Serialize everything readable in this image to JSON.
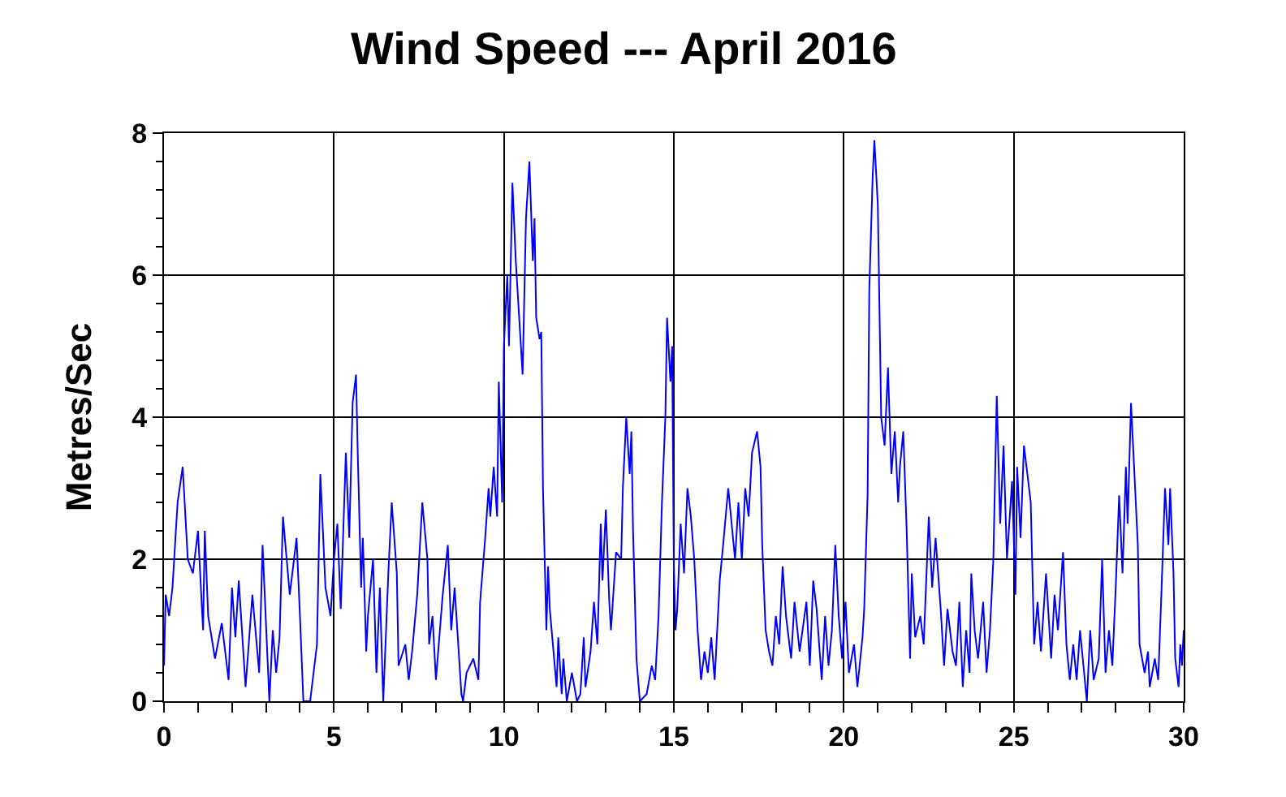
{
  "chart_data": {
    "type": "line",
    "title": "Wind Speed --- April 2016",
    "ylabel": "Metres/Sec",
    "x": [
      0,
      0.05,
      0.15,
      0.25,
      0.4,
      0.55,
      0.7,
      0.85,
      1.0,
      1.15,
      1.2,
      1.3,
      1.5,
      1.7,
      1.9,
      2.0,
      2.1,
      2.2,
      2.4,
      2.6,
      2.8,
      2.9,
      3.1,
      3.2,
      3.3,
      3.4,
      3.5,
      3.7,
      3.9,
      4.0,
      4.1,
      4.3,
      4.5,
      4.6,
      4.75,
      4.9,
      5.0,
      5.1,
      5.2,
      5.35,
      5.45,
      5.55,
      5.65,
      5.7,
      5.8,
      5.85,
      5.95,
      6.0,
      6.15,
      6.25,
      6.35,
      6.45,
      6.6,
      6.7,
      6.85,
      6.9,
      7.1,
      7.2,
      7.3,
      7.45,
      7.6,
      7.75,
      7.8,
      7.9,
      8.0,
      8.2,
      8.35,
      8.45,
      8.55,
      8.75,
      8.8,
      8.9,
      9.1,
      9.25,
      9.3,
      9.45,
      9.55,
      9.6,
      9.7,
      9.8,
      9.85,
      9.95,
      10.0,
      10.1,
      10.15,
      10.25,
      10.35,
      10.5,
      10.55,
      10.65,
      10.75,
      10.85,
      10.9,
      10.95,
      11.05,
      11.1,
      11.15,
      11.25,
      11.3,
      11.35,
      11.55,
      11.6,
      11.7,
      11.75,
      11.85,
      12.0,
      12.15,
      12.25,
      12.35,
      12.4,
      12.55,
      12.65,
      12.75,
      12.85,
      12.9,
      13.0,
      13.1,
      13.15,
      13.3,
      13.45,
      13.5,
      13.6,
      13.7,
      13.75,
      13.8,
      13.9,
      14.0,
      14.2,
      14.35,
      14.45,
      14.55,
      14.65,
      14.75,
      14.8,
      14.9,
      14.95,
      15.0,
      15.05,
      15.1,
      15.2,
      15.3,
      15.4,
      15.5,
      15.6,
      15.7,
      15.8,
      15.9,
      16.0,
      16.1,
      16.2,
      16.35,
      16.45,
      16.6,
      16.7,
      16.8,
      16.9,
      17.0,
      17.1,
      17.2,
      17.3,
      17.45,
      17.55,
      17.6,
      17.7,
      17.8,
      17.9,
      18.0,
      18.1,
      18.2,
      18.3,
      18.45,
      18.55,
      18.7,
      18.9,
      19.0,
      19.1,
      19.2,
      19.35,
      19.45,
      19.55,
      19.65,
      19.75,
      19.85,
      19.95,
      20.05,
      20.15,
      20.3,
      20.4,
      20.55,
      20.6,
      20.7,
      20.75,
      20.85,
      20.9,
      21.0,
      21.05,
      21.1,
      21.2,
      21.3,
      21.4,
      21.5,
      21.6,
      21.65,
      21.75,
      21.85,
      21.95,
      22.0,
      22.1,
      22.25,
      22.35,
      22.5,
      22.6,
      22.7,
      22.85,
      22.95,
      23.05,
      23.2,
      23.3,
      23.4,
      23.5,
      23.6,
      23.7,
      23.75,
      23.85,
      23.95,
      24.1,
      24.2,
      24.3,
      24.4,
      24.5,
      24.6,
      24.7,
      24.8,
      24.95,
      25.05,
      25.1,
      25.2,
      25.3,
      25.4,
      25.5,
      25.6,
      25.7,
      25.8,
      25.95,
      26.1,
      26.2,
      26.3,
      26.45,
      26.55,
      26.65,
      26.75,
      26.85,
      26.95,
      27.05,
      27.15,
      27.25,
      27.35,
      27.5,
      27.6,
      27.7,
      27.8,
      27.9,
      28.0,
      28.1,
      28.2,
      28.3,
      28.35,
      28.45,
      28.55,
      28.65,
      28.7,
      28.85,
      28.95,
      29.0,
      29.15,
      29.25,
      29.35,
      29.45,
      29.55,
      29.6,
      29.7,
      29.75,
      29.85,
      29.9,
      29.95,
      30.0
    ],
    "series": [
      {
        "color": "#0000ff",
        "values": [
          0.5,
          1.5,
          1.2,
          1.6,
          2.8,
          3.3,
          2.0,
          1.8,
          2.4,
          1.0,
          2.4,
          1.2,
          0.6,
          1.1,
          0.3,
          1.6,
          0.9,
          1.7,
          0.2,
          1.5,
          0.4,
          2.2,
          0.0,
          1.0,
          0.4,
          0.9,
          2.6,
          1.5,
          2.3,
          1.2,
          0.0,
          0.0,
          0.8,
          3.2,
          1.6,
          1.2,
          2.0,
          2.5,
          1.3,
          3.5,
          2.3,
          4.2,
          4.6,
          3.5,
          1.6,
          2.3,
          0.7,
          1.2,
          2.0,
          0.4,
          1.6,
          0.0,
          1.8,
          2.8,
          1.8,
          0.5,
          0.8,
          0.3,
          0.7,
          1.5,
          2.8,
          2.0,
          0.8,
          1.2,
          0.3,
          1.5,
          2.2,
          1.0,
          1.6,
          0.1,
          0.0,
          0.4,
          0.6,
          0.3,
          1.4,
          2.3,
          3.0,
          2.6,
          3.3,
          2.6,
          4.5,
          2.8,
          5.0,
          6.0,
          5.0,
          7.3,
          6.2,
          5.0,
          4.6,
          6.8,
          7.6,
          6.2,
          6.8,
          5.4,
          5.1,
          5.2,
          3.0,
          1.0,
          1.9,
          1.3,
          0.2,
          0.9,
          0.1,
          0.6,
          0.0,
          0.4,
          0.0,
          0.1,
          0.9,
          0.2,
          0.7,
          1.4,
          0.8,
          2.5,
          1.7,
          2.7,
          1.4,
          1.0,
          2.1,
          2.0,
          3.0,
          4.0,
          3.2,
          3.8,
          2.4,
          0.6,
          0.0,
          0.1,
          0.5,
          0.3,
          1.2,
          2.8,
          4.0,
          5.4,
          4.5,
          5.0,
          1.9,
          1.0,
          1.3,
          2.5,
          1.8,
          3.0,
          2.6,
          2.0,
          1.0,
          0.3,
          0.7,
          0.4,
          0.9,
          0.3,
          1.7,
          2.2,
          3.0,
          2.5,
          2.0,
          2.8,
          2.0,
          3.0,
          2.6,
          3.5,
          3.8,
          3.3,
          2.2,
          1.0,
          0.7,
          0.5,
          1.2,
          0.8,
          1.9,
          1.2,
          0.6,
          1.4,
          0.7,
          1.4,
          0.5,
          1.7,
          1.3,
          0.3,
          1.2,
          0.5,
          1.0,
          2.2,
          1.2,
          0.6,
          1.4,
          0.4,
          0.8,
          0.2,
          0.9,
          1.3,
          2.9,
          5.8,
          7.4,
          7.9,
          7.0,
          5.5,
          4.0,
          3.6,
          4.7,
          3.2,
          3.8,
          2.8,
          3.3,
          3.8,
          2.4,
          0.6,
          1.8,
          0.9,
          1.2,
          0.8,
          2.6,
          1.6,
          2.3,
          1.3,
          0.5,
          1.3,
          0.7,
          0.5,
          1.4,
          0.2,
          1.0,
          0.4,
          1.8,
          1.0,
          0.6,
          1.4,
          0.4,
          1.0,
          2.0,
          4.3,
          2.5,
          3.6,
          2.0,
          3.1,
          1.5,
          3.3,
          2.3,
          3.6,
          3.2,
          2.8,
          0.8,
          1.4,
          0.7,
          1.8,
          0.6,
          1.5,
          1.0,
          2.1,
          0.8,
          0.3,
          0.8,
          0.3,
          1.0,
          0.5,
          0.0,
          1.0,
          0.3,
          0.6,
          2.0,
          0.4,
          1.0,
          0.5,
          1.6,
          2.9,
          1.8,
          3.3,
          2.5,
          4.2,
          3.2,
          2.2,
          0.8,
          0.4,
          0.7,
          0.2,
          0.6,
          0.3,
          1.6,
          3.0,
          2.2,
          3.0,
          1.8,
          0.6,
          0.2,
          0.8,
          0.5,
          1.0
        ]
      }
    ],
    "xlim": [
      0,
      30
    ],
    "ylim": [
      0,
      8
    ],
    "xticks": [
      0,
      {
        "value": 1,
        "label": null
      },
      {
        "value": 2,
        "label": null
      },
      {
        "value": 3,
        "label": null
      },
      {
        "value": 4,
        "label": null
      },
      5,
      {
        "value": 6,
        "label": null
      },
      {
        "value": 7,
        "label": null
      },
      {
        "value": 8,
        "label": null
      },
      {
        "value": 9,
        "label": null
      },
      10,
      {
        "value": 11,
        "label": null
      },
      {
        "value": 12,
        "label": null
      },
      {
        "value": 13,
        "label": null
      },
      {
        "value": 14,
        "label": null
      },
      15,
      {
        "value": 16,
        "label": null
      },
      {
        "value": 17,
        "label": null
      },
      {
        "value": 18,
        "label": null
      },
      {
        "value": 19,
        "label": null
      },
      20,
      {
        "value": 21,
        "label": null
      },
      {
        "value": 22,
        "label": null
      },
      {
        "value": 23,
        "label": null
      },
      {
        "value": 24,
        "label": null
      },
      25,
      {
        "value": 26,
        "label": null
      },
      {
        "value": 27,
        "label": null
      },
      {
        "value": 28,
        "label": null
      },
      {
        "value": 29,
        "label": null
      },
      30
    ],
    "yticks": [
      0,
      {
        "value": 0.4,
        "label": null
      },
      {
        "value": 0.8,
        "label": null
      },
      {
        "value": 1.2,
        "label": null
      },
      {
        "value": 1.6,
        "label": null
      },
      2,
      {
        "value": 2.4,
        "label": null
      },
      {
        "value": 2.8,
        "label": null
      },
      {
        "value": 3.2,
        "label": null
      },
      {
        "value": 3.6,
        "label": null
      },
      4,
      {
        "value": 4.4,
        "label": null
      },
      {
        "value": 4.8,
        "label": null
      },
      {
        "value": 5.2,
        "label": null
      },
      {
        "value": 5.6,
        "label": null
      },
      6,
      {
        "value": 6.4,
        "label": null
      },
      {
        "value": 6.8,
        "label": null
      },
      {
        "value": 7.2,
        "label": null
      },
      {
        "value": 7.6,
        "label": null
      },
      8
    ],
    "grid": true,
    "marker": "none",
    "line_style": "solid"
  }
}
